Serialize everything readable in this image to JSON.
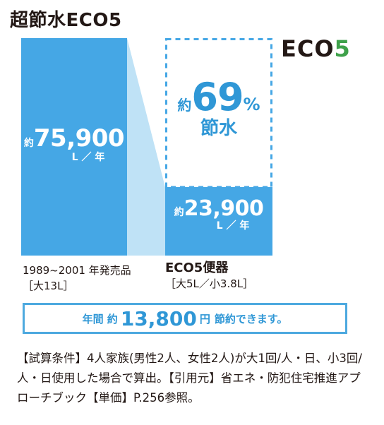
{
  "title": "超節水ECO5",
  "logo": {
    "text": "ECO",
    "digit": "5"
  },
  "chart_data": {
    "type": "bar",
    "categories": [
      "1989~2001 年発売品",
      "ECO5便器"
    ],
    "values": [
      75900,
      23900
    ],
    "unit": "L／年",
    "savings_percent": 69,
    "colors": {
      "bar": "#45a7e5",
      "connector": "#bfe2f6",
      "dashed": "#45a7e5",
      "text_accent": "#2f97d6"
    }
  },
  "bars": {
    "old": {
      "approx": "約",
      "value": "75,900",
      "unit": "L ／ 年"
    },
    "new": {
      "approx": "約",
      "value": "23,900",
      "unit": "L ／ 年"
    }
  },
  "savings": {
    "approx": "約",
    "value": "69",
    "percent": "%",
    "label": "節水"
  },
  "labels": {
    "old_line1": "1989~2001 年発売品",
    "old_line2": "［大13L］",
    "new_line1": "ECO5便器",
    "new_line2": "［大5L／小3.8L］"
  },
  "annual": {
    "prefix": "年間 約",
    "value": "13,800",
    "unit": "円",
    "suffix": "節約できます。"
  },
  "conditions": "【試算条件】4人家族(男性2人、女性2人)が大1回/人・日、小3回/人・日使用した場合で算出。【引用元】省エネ・防犯住宅推進アプローチブック【単価】P.256参照。"
}
